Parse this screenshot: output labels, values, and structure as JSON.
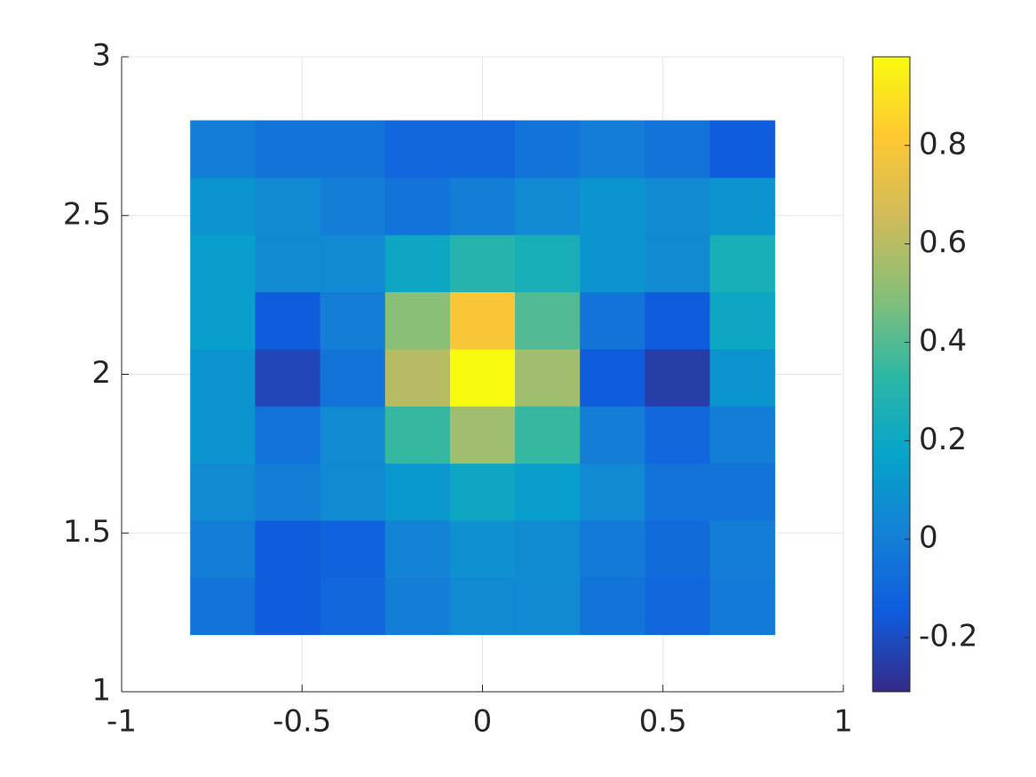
{
  "chart_data": {
    "type": "heatmap",
    "x": [
      -0.72,
      -0.54,
      -0.36,
      -0.18,
      0,
      0.18,
      0.36,
      0.54,
      0.72
    ],
    "y": [
      1.27,
      1.45,
      1.63,
      1.81,
      1.99,
      2.17,
      2.35,
      2.53,
      2.71
    ],
    "z": [
      [
        -0.05,
        -0.15,
        -0.1,
        0.0,
        0.05,
        0.05,
        -0.05,
        -0.1,
        -0.02
      ],
      [
        0.0,
        -0.15,
        -0.12,
        0.02,
        0.08,
        0.06,
        -0.02,
        -0.08,
        0.0
      ],
      [
        0.05,
        0.0,
        0.05,
        0.12,
        0.2,
        0.15,
        0.05,
        -0.05,
        -0.05
      ],
      [
        0.1,
        -0.05,
        0.05,
        0.35,
        0.55,
        0.35,
        0.0,
        -0.1,
        0.0
      ],
      [
        0.1,
        -0.22,
        -0.05,
        0.6,
        0.98,
        0.55,
        -0.15,
        -0.25,
        0.1
      ],
      [
        0.15,
        -0.15,
        0.0,
        0.5,
        0.8,
        0.4,
        -0.05,
        -0.15,
        0.2
      ],
      [
        0.15,
        0.05,
        0.05,
        0.2,
        0.3,
        0.25,
        0.1,
        0.05,
        0.25
      ],
      [
        0.1,
        0.05,
        0.0,
        -0.05,
        0.0,
        0.05,
        0.1,
        0.05,
        0.1
      ],
      [
        0.0,
        -0.05,
        -0.05,
        -0.1,
        -0.1,
        -0.05,
        0.0,
        -0.05,
        -0.15
      ]
    ],
    "xlim": [
      -1,
      1
    ],
    "xticks": [
      -1,
      -0.5,
      0,
      0.5,
      1
    ],
    "ylim": [
      1,
      3
    ],
    "yticks": [
      1,
      1.5,
      2,
      2.5,
      3
    ],
    "clim": [
      -0.31,
      0.98
    ],
    "cticks": [
      -0.2,
      0,
      0.2,
      0.4,
      0.6,
      0.8
    ],
    "colormap": [
      "#352a87",
      "#0f5cdd",
      "#1481d6",
      "#06a4ca",
      "#2eb7a4",
      "#87bf77",
      "#d1bb59",
      "#fec832",
      "#f9fb0e"
    ],
    "grid": true
  }
}
